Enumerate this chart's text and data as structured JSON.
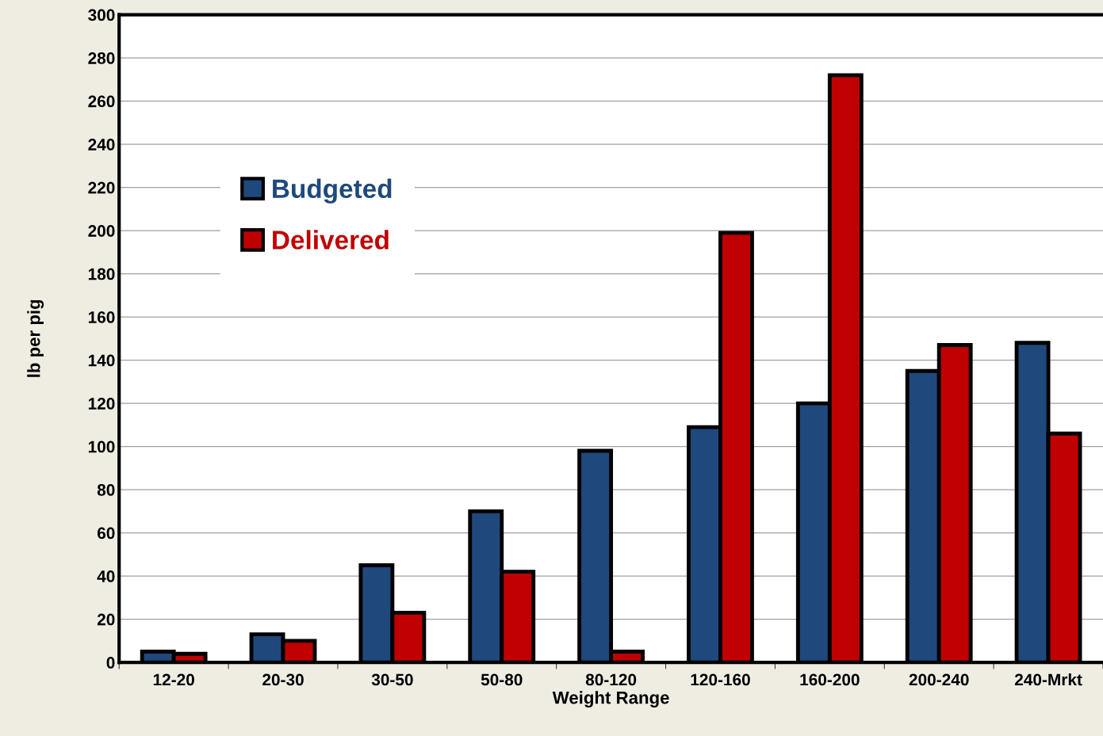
{
  "chart_data": {
    "type": "bar",
    "xlabel": "Weight Range",
    "ylabel": "lb per pig",
    "categories": [
      "12-20",
      "20-30",
      "30-50",
      "50-80",
      "80-120",
      "120-160",
      "160-200",
      "200-240",
      "240-Mrkt"
    ],
    "series": [
      {
        "name": "Budgeted",
        "color": "#1f497d",
        "values": [
          5,
          13,
          45,
          70,
          98,
          109,
          120,
          135,
          148
        ]
      },
      {
        "name": "Delivered",
        "color": "#c00000",
        "values": [
          4,
          10,
          23,
          42,
          5,
          199,
          272,
          147,
          106
        ]
      }
    ],
    "ylim": [
      0,
      300
    ],
    "yticks": [
      0,
      20,
      40,
      60,
      80,
      100,
      120,
      140,
      160,
      180,
      200,
      220,
      240,
      260,
      280,
      300
    ],
    "grid": "y",
    "legend": "top left"
  }
}
